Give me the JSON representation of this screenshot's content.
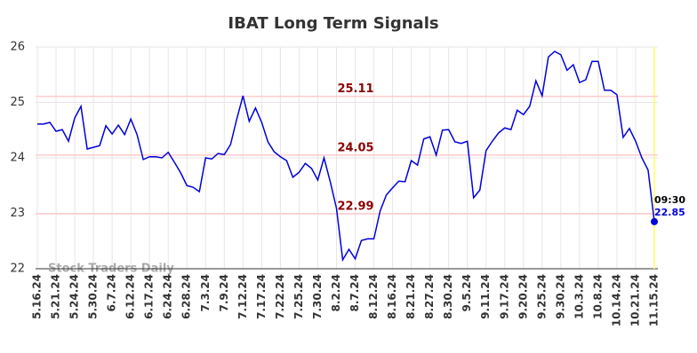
{
  "chart_data": {
    "type": "line",
    "title": "IBAT Long Term Signals",
    "watermark": "Stock Traders Daily",
    "categories": [
      "5.16.24",
      null,
      null,
      "5.21.24",
      null,
      null,
      "5.24.24",
      null,
      null,
      "5.30.24",
      null,
      null,
      "6.7.24",
      null,
      null,
      "6.12.24",
      null,
      null,
      "6.17.24",
      null,
      null,
      "6.24.24",
      null,
      null,
      "6.28.24",
      null,
      null,
      "7.3.24",
      null,
      null,
      "7.9.24",
      null,
      null,
      "7.12.24",
      null,
      null,
      "7.17.24",
      null,
      null,
      "7.22.24",
      null,
      null,
      "7.25.24",
      null,
      null,
      "7.30.24",
      null,
      null,
      "8.2.24",
      null,
      null,
      "8.7.24",
      null,
      null,
      "8.12.24",
      null,
      null,
      "8.16.24",
      null,
      null,
      "8.21.24",
      null,
      null,
      "8.27.24",
      null,
      null,
      "8.30.24",
      null,
      null,
      "9.5.24",
      null,
      null,
      "9.11.24",
      null,
      null,
      "9.17.24",
      null,
      null,
      "9.20.24",
      null,
      null,
      "9.25.24",
      null,
      null,
      "9.30.24",
      null,
      null,
      "10.3.24",
      null,
      null,
      "10.8.24",
      null,
      null,
      "10.14.24",
      null,
      null,
      "10.21.24",
      null,
      null,
      "11.15.24"
    ],
    "series": [
      {
        "name": "IBAT",
        "color": "#0000dd",
        "values": [
          24.61,
          24.61,
          24.64,
          24.48,
          24.51,
          24.3,
          24.72,
          24.93,
          24.16,
          24.19,
          24.22,
          24.58,
          24.43,
          24.59,
          24.42,
          24.7,
          24.42,
          23.97,
          24.02,
          24.02,
          24.0,
          24.1,
          23.92,
          23.73,
          23.5,
          23.47,
          23.39,
          24.0,
          23.98,
          24.08,
          24.06,
          24.24,
          24.7,
          25.12,
          24.66,
          24.9,
          24.64,
          24.29,
          24.11,
          24.02,
          23.95,
          23.65,
          23.74,
          23.9,
          23.81,
          23.6,
          24.0,
          23.57,
          23.09,
          22.16,
          22.35,
          22.18,
          22.51,
          22.54,
          22.54,
          23.04,
          23.33,
          23.46,
          23.58,
          23.57,
          23.95,
          23.87,
          24.34,
          24.38,
          24.05,
          24.5,
          24.51,
          24.29,
          24.26,
          24.3,
          23.28,
          23.42,
          24.13,
          24.3,
          24.45,
          24.54,
          24.51,
          24.86,
          24.78,
          24.93,
          25.39,
          25.12,
          25.82,
          25.92,
          25.86,
          25.58,
          25.68,
          25.36,
          25.41,
          25.74,
          25.74,
          25.22,
          25.22,
          25.14,
          24.37,
          24.53,
          24.3,
          24.0,
          23.78,
          22.85
        ]
      }
    ],
    "last_time": "09:30",
    "hlines": [
      {
        "value": 25.11,
        "color": "#ffcccc",
        "label_color": "#8b0000"
      },
      {
        "value": 24.05,
        "color": "#ffcccc",
        "label_color": "#8b0000"
      },
      {
        "value": 22.99,
        "color": "#ffcccc",
        "label_color": "#8b0000"
      }
    ],
    "highlight_color": "#ffff88",
    "ylim": [
      22,
      26
    ],
    "yticks": [
      22,
      23,
      24,
      25,
      26
    ],
    "grid": true
  }
}
